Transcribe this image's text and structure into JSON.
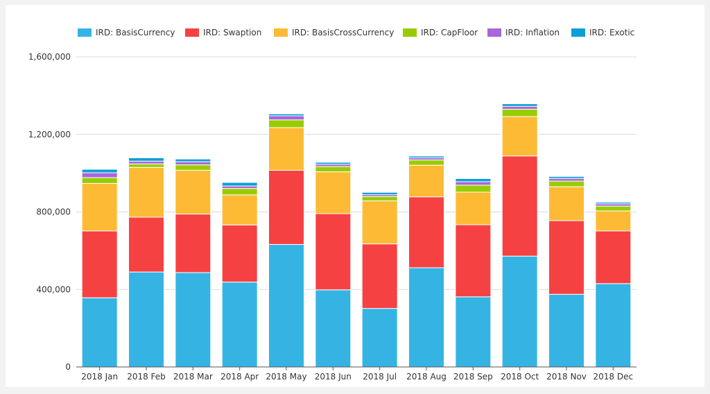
{
  "chart_data": {
    "type": "bar",
    "stacked": true,
    "categories": [
      "2018 Jan",
      "2018 Feb",
      "2018 Mar",
      "2018 Apr",
      "2018 May",
      "2018 Jun",
      "2018 Jul",
      "2018 Aug",
      "2018 Sep",
      "2018 Oct",
      "2018 Nov",
      "2018 Dec"
    ],
    "series": [
      {
        "name": "IRD: BasisCurrency",
        "color": "#35b4e4",
        "values": [
          357000,
          490000,
          487000,
          438000,
          632000,
          398000,
          302000,
          512000,
          362000,
          572000,
          375000,
          430000
        ]
      },
      {
        "name": "IRD: Swaption",
        "color": "#f64143",
        "values": [
          345000,
          283000,
          302000,
          295000,
          383000,
          393000,
          333000,
          366000,
          372000,
          517000,
          380000,
          272000
        ]
      },
      {
        "name": "IRD: BasisCrossCurrency",
        "color": "#fdba35",
        "values": [
          245000,
          257000,
          226000,
          155000,
          220000,
          216000,
          222000,
          163000,
          168000,
          203000,
          175000,
          103000
        ]
      },
      {
        "name": "IRD: CapFloor",
        "color": "#99cc00",
        "values": [
          30000,
          18000,
          28000,
          33000,
          40000,
          27000,
          22000,
          27000,
          36000,
          38000,
          29000,
          25000
        ]
      },
      {
        "name": "IRD: Inflation",
        "color": "#a966d9",
        "values": [
          25000,
          14000,
          16000,
          13000,
          21000,
          12000,
          10000,
          11000,
          18000,
          15000,
          14000,
          12000
        ]
      },
      {
        "name": "IRD: Exotic",
        "color": "#0a9fd6",
        "values": [
          18000,
          17000,
          14000,
          18000,
          10000,
          10000,
          12000,
          9000,
          16000,
          13000,
          10000,
          8000
        ]
      }
    ],
    "yticks": [
      "0",
      "400,000",
      "800,000",
      "1,200,000",
      "1,600,000"
    ],
    "ytick_values": [
      0,
      400000,
      800000,
      1200000,
      1600000
    ],
    "ylim": [
      0,
      1600000
    ],
    "grid": true,
    "legend_position": "top"
  }
}
